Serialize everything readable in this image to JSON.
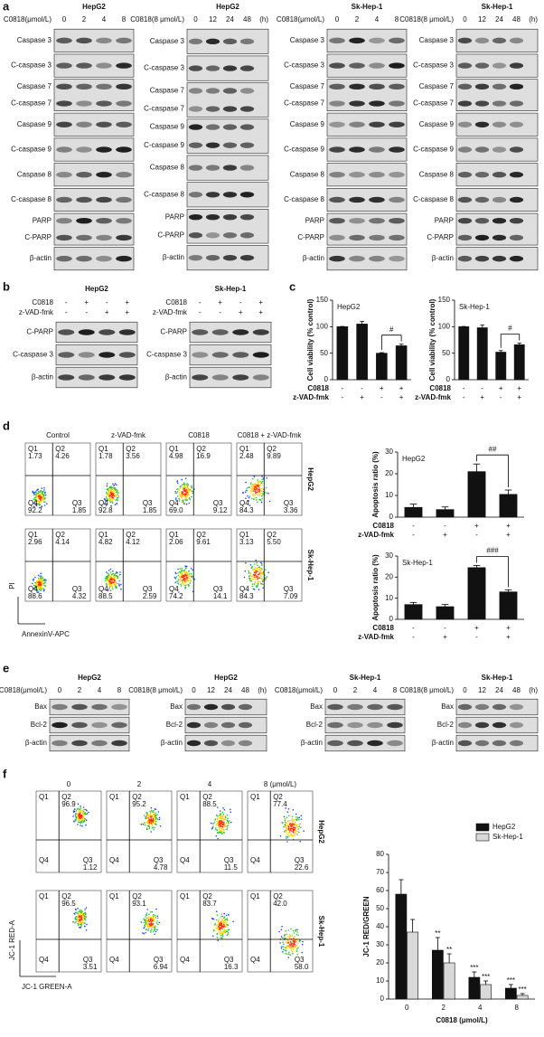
{
  "panel_labels": [
    "a",
    "b",
    "c",
    "d",
    "e",
    "f"
  ],
  "blots_a": [
    {
      "title": "HepG2",
      "condition": "C0818(μmol/L)",
      "lanes": [
        0,
        2,
        4,
        8
      ],
      "rows": [
        [
          "Caspase 3"
        ],
        [
          "C-caspase 3"
        ],
        [
          "Caspase 7",
          "C-caspase 7"
        ],
        [
          "Caspase 9"
        ],
        [
          "C-caspase 9"
        ],
        [
          "Caspase 8"
        ],
        [
          "C-caspase 8"
        ],
        [
          "PARP",
          "C-PARP"
        ],
        [
          "β-actin"
        ]
      ]
    },
    {
      "title": "HepG2",
      "condition": "C0818(8 μmol/L)",
      "lanes": [
        0,
        12,
        24,
        48
      ],
      "unit": "(h)",
      "rows": [
        [
          "Caspase 3"
        ],
        [
          "C-caspase 3"
        ],
        [
          "Caspase 7",
          "C-caspase 7"
        ],
        [
          "Caspase 9",
          "C-caspase 9"
        ],
        [
          "Caspase 8"
        ],
        [
          "C-caspase 8"
        ],
        [
          "PARP",
          "C-PARP"
        ],
        [
          "β-actin"
        ]
      ]
    },
    {
      "title": "Sk-Hep-1",
      "condition": "C0818(μmol/L)",
      "lanes": [
        0,
        2,
        4,
        8
      ],
      "rows": [
        [
          "Caspase 3"
        ],
        [
          "C-caspase 3"
        ],
        [
          "Caspase 7",
          "C-caspase 7"
        ],
        [
          "Caspase 9"
        ],
        [
          "C-caspase 9"
        ],
        [
          "Caspase 8"
        ],
        [
          "C-caspase 8"
        ],
        [
          "PARP",
          "C-PARP"
        ],
        [
          "β-actin"
        ]
      ]
    },
    {
      "title": "Sk-Hep-1",
      "condition": "C0818(8 μmol/L)",
      "lanes": [
        0,
        12,
        24,
        48
      ],
      "unit": "(h)",
      "rows": [
        [
          "Caspase 3"
        ],
        [
          "C-caspase 3"
        ],
        [
          "Caspase 7",
          "C-caspase 7"
        ],
        [
          "Caspase 9"
        ],
        [
          "C-caspase 9"
        ],
        [
          "Caspase 8"
        ],
        [
          "C-caspase 8"
        ],
        [
          "PARP",
          "C-PARP"
        ],
        [
          "β-actin"
        ]
      ]
    }
  ],
  "blots_b": [
    {
      "title": "HepG2",
      "treatments": [
        {
          "name": "C0818",
          "signs": [
            "-",
            "+",
            "-",
            "+"
          ]
        },
        {
          "name": "z-VAD-fmk",
          "signs": [
            "-",
            "-",
            "+",
            "+"
          ]
        }
      ],
      "rows": [
        [
          "C-PARP"
        ],
        [
          "C-caspase 3"
        ],
        [
          "β-actin"
        ]
      ]
    },
    {
      "title": "Sk-Hep-1",
      "treatments": [
        {
          "name": "C0818",
          "signs": [
            "-",
            "+",
            "-",
            "+"
          ]
        },
        {
          "name": "z-VAD-fmk",
          "signs": [
            "-",
            "-",
            "+",
            "+"
          ]
        }
      ],
      "rows": [
        [
          "C-PARP"
        ],
        [
          "C-caspase 3"
        ],
        [
          "β-actin"
        ]
      ]
    }
  ],
  "blots_e": [
    {
      "title": "HepG2",
      "condition": "C0818(μmol/L)",
      "lanes": [
        0,
        2,
        4,
        8
      ],
      "rows": [
        [
          "Bax"
        ],
        [
          "Bcl-2"
        ],
        [
          "β-actin"
        ]
      ]
    },
    {
      "title": "HepG2",
      "condition": "C0818(8 μmol/L)",
      "lanes": [
        0,
        12,
        24,
        48
      ],
      "unit": "(h)",
      "rows": [
        [
          "Bax"
        ],
        [
          "Bcl-2"
        ],
        [
          "β-actin"
        ]
      ]
    },
    {
      "title": "Sk-Hep-1",
      "condition": "C0818(μmol/L)",
      "lanes": [
        0,
        2,
        4,
        8
      ],
      "rows": [
        [
          "Bax"
        ],
        [
          "Bcl-2"
        ],
        [
          "β-actin"
        ]
      ]
    },
    {
      "title": "Sk-Hep-1",
      "condition": "C0818(8 μmol/L)",
      "lanes": [
        0,
        12,
        24,
        48
      ],
      "unit": "(h)",
      "rows": [
        [
          "Bax"
        ],
        [
          "Bcl-2"
        ],
        [
          "β-actin"
        ]
      ]
    }
  ],
  "flow_d": {
    "headers": [
      "Control",
      "z-VAD-fmk",
      "C0818",
      "C0818 + z-VAD-fmk"
    ],
    "quadrants": [
      "Q1",
      "Q2",
      "Q4",
      "Q3"
    ],
    "y_axis": "PI",
    "x_axis": "AnnexinV-APC",
    "rows": [
      {
        "label": "HepG2",
        "plots": [
          [
            "1.73",
            "4.26",
            "92.2",
            "1.85"
          ],
          [
            "1.78",
            "3.56",
            "92.8",
            "1.85"
          ],
          [
            "4.98",
            "16.9",
            "69.0",
            "9.12"
          ],
          [
            "2.48",
            "9.89",
            "84.3",
            "3.36"
          ]
        ]
      },
      {
        "label": "Sk-Hep-1",
        "plots": [
          [
            "2.96",
            "4.14",
            "88.6",
            "4.32"
          ],
          [
            "4.82",
            "4.12",
            "88.5",
            "2.59"
          ],
          [
            "2.06",
            "9.61",
            "74.2",
            "14.1"
          ],
          [
            "3.13",
            "5.50",
            "84.3",
            "7.09"
          ]
        ]
      }
    ]
  },
  "flow_f": {
    "headers": [
      "0",
      "2",
      "4",
      "8 (μmol/L)"
    ],
    "quadrants": [
      "Q1",
      "Q2",
      "Q4",
      "Q3"
    ],
    "y_axis": "JC-1 RED-A",
    "x_axis": "JC-1 GREEN-A",
    "rows": [
      {
        "label": "HepG2",
        "plots": [
          [
            null,
            "96.9",
            null,
            "1.12"
          ],
          [
            null,
            "95.2",
            null,
            "4.78"
          ],
          [
            null,
            "88.5",
            null,
            "11.5"
          ],
          [
            null,
            "77.4",
            null,
            "22.6"
          ]
        ]
      },
      {
        "label": "Sk-Hep-1",
        "plots": [
          [
            null,
            "96.5",
            null,
            "3.51"
          ],
          [
            null,
            "93.1",
            null,
            "6.94"
          ],
          [
            null,
            "83.7",
            null,
            "16.3"
          ],
          [
            null,
            "42.0",
            null,
            "58.0"
          ]
        ]
      }
    ]
  },
  "chart_data": [
    {
      "type": "bar",
      "title": "HepG2",
      "ylabel": "Cell viability (% control)",
      "color": "#111111",
      "values": [
        100,
        105,
        50,
        64
      ],
      "errors": [
        0.5,
        5,
        1,
        3
      ],
      "ylim": [
        0,
        150
      ],
      "yticks": [
        0,
        50,
        100,
        150
      ],
      "treatments": [
        {
          "name": "C0818",
          "signs": [
            "-",
            "-",
            "+",
            "+"
          ]
        },
        {
          "name": "z-VAD-fmk",
          "signs": [
            "-",
            "+",
            "-",
            "+"
          ]
        }
      ],
      "annotation": "#"
    },
    {
      "type": "bar",
      "title": "Sk-Hep-1",
      "ylabel": "Cell viability (% control)",
      "color": "#111111",
      "values": [
        100,
        98,
        52,
        66
      ],
      "errors": [
        0.5,
        5,
        3,
        3
      ],
      "ylim": [
        0,
        150
      ],
      "yticks": [
        0,
        50,
        100,
        150
      ],
      "treatments": [
        {
          "name": "C0818",
          "signs": [
            "-",
            "-",
            "+",
            "+"
          ]
        },
        {
          "name": "z-VAD-fmk",
          "signs": [
            "-",
            "+",
            "-",
            "+"
          ]
        }
      ],
      "annotation": "#"
    },
    {
      "type": "bar",
      "title": "HepG2",
      "ylabel": "Apoptosis ratio (%)",
      "color": "#111111",
      "values": [
        4.5,
        3.5,
        21,
        10.5
      ],
      "errors": [
        1.5,
        1.2,
        3.5,
        2
      ],
      "ylim": [
        0,
        30
      ],
      "yticks": [
        0,
        10,
        20,
        30
      ],
      "treatments": [
        {
          "name": "C0818",
          "signs": [
            "-",
            "-",
            "+",
            "+"
          ]
        },
        {
          "name": "z-VAD-fmk",
          "signs": [
            "-",
            "+",
            "-",
            "+"
          ]
        }
      ],
      "annotation": "##"
    },
    {
      "type": "bar",
      "title": "Sk-Hep-1",
      "ylabel": "Apoptosis ratio (%)",
      "color": "#111111",
      "values": [
        7,
        6,
        24.5,
        13
      ],
      "errors": [
        1,
        1,
        1,
        1
      ],
      "ylim": [
        0,
        30
      ],
      "yticks": [
        0,
        10,
        20,
        30
      ],
      "treatments": [
        {
          "name": "C0818",
          "signs": [
            "-",
            "-",
            "+",
            "+"
          ]
        },
        {
          "name": "z-VAD-fmk",
          "signs": [
            "-",
            "+",
            "-",
            "+"
          ]
        }
      ],
      "annotation": "###"
    },
    {
      "type": "bar",
      "ylabel": "JC-1 RED/GREEN",
      "xlabel": "C0818 (μmol/L)",
      "categories": [
        0,
        2,
        4,
        8
      ],
      "ylim": [
        0,
        80
      ],
      "yticks": [
        0,
        10,
        20,
        30,
        40,
        50,
        60,
        70,
        80
      ],
      "legend": "top-right",
      "series": [
        {
          "name": "HepG2",
          "color": "#111111",
          "values": [
            58,
            27,
            12,
            6
          ],
          "errors": [
            8,
            7,
            3,
            2
          ],
          "stars": [
            null,
            "**",
            "***",
            "***"
          ]
        },
        {
          "name": "Sk-Hep-1",
          "color": "#d9d9d9",
          "values": [
            37,
            20,
            8,
            2
          ],
          "errors": [
            7,
            5,
            2,
            1
          ],
          "stars": [
            null,
            "**",
            "***",
            "***"
          ]
        }
      ]
    }
  ]
}
